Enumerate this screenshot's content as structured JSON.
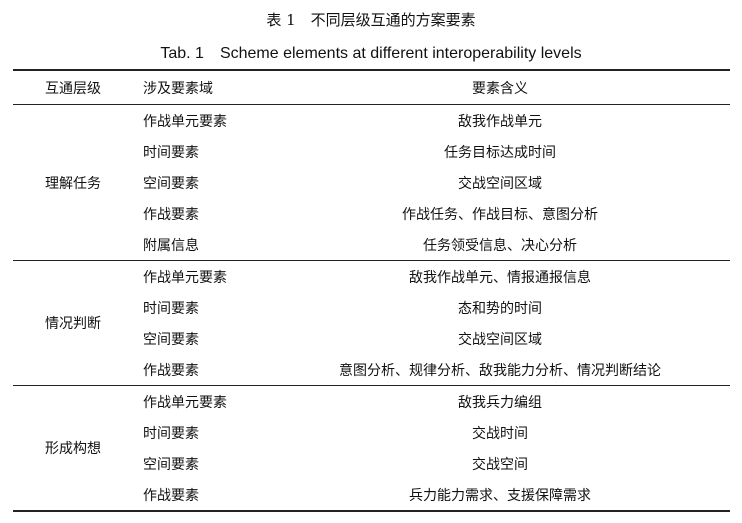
{
  "caption_cn": "表 1　不同层级互通的方案要素",
  "caption_en": "Tab. 1　Scheme elements at different interoperability levels",
  "headers": [
    "互通层级",
    "涉及要素域",
    "要素含义"
  ],
  "groups": [
    {
      "level": "理解任务",
      "rows": [
        {
          "domain": "作战单元要素",
          "meaning": "敌我作战单元"
        },
        {
          "domain": "时间要素",
          "meaning": "任务目标达成时间"
        },
        {
          "domain": "空间要素",
          "meaning": "交战空间区域"
        },
        {
          "domain": "作战要素",
          "meaning": "作战任务、作战目标、意图分析"
        },
        {
          "domain": "附属信息",
          "meaning": "任务领受信息、决心分析"
        }
      ]
    },
    {
      "level": "情况判断",
      "rows": [
        {
          "domain": "作战单元要素",
          "meaning": "敌我作战单元、情报通报信息"
        },
        {
          "domain": "时间要素",
          "meaning": "态和势的时间"
        },
        {
          "domain": "空间要素",
          "meaning": "交战空间区域"
        },
        {
          "domain": "作战要素",
          "meaning": "意图分析、规律分析、敌我能力分析、情况判断结论"
        }
      ]
    },
    {
      "level": "形成构想",
      "rows": [
        {
          "domain": "作战单元要素",
          "meaning": "敌我兵力编组"
        },
        {
          "domain": "时间要素",
          "meaning": "交战时间"
        },
        {
          "domain": "空间要素",
          "meaning": "交战空间"
        },
        {
          "domain": "作战要素",
          "meaning": "兵力能力需求、支援保障需求"
        }
      ]
    }
  ]
}
